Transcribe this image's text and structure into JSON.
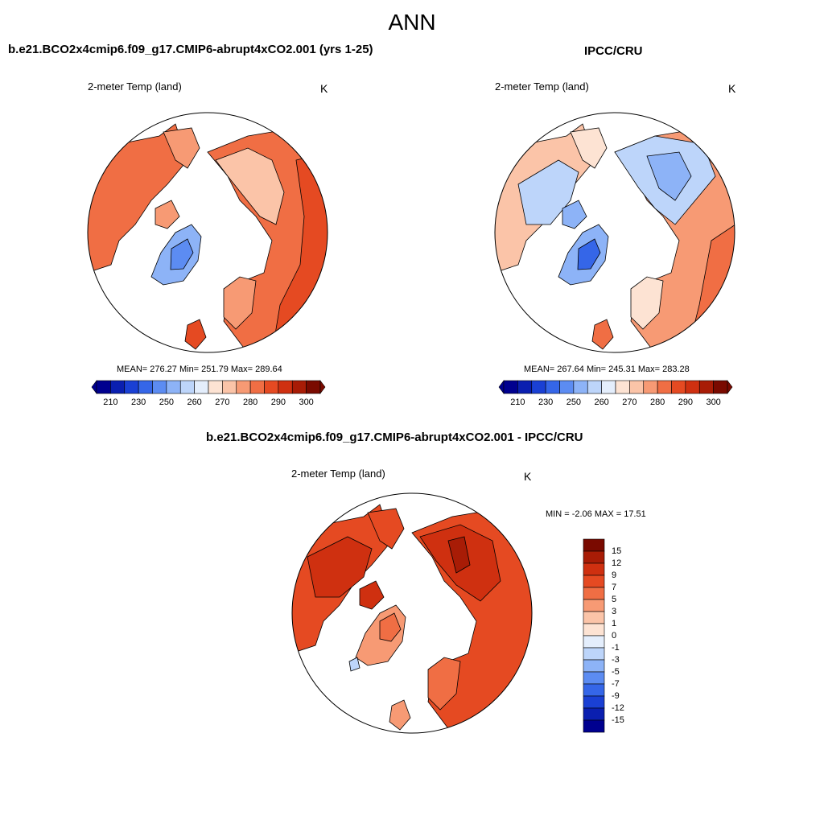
{
  "title": "ANN",
  "panels": [
    {
      "title": "b.e21.BCO2x4cmip6.f09_g17.CMIP6-abrupt4xCO2.001 (yrs 1-25)",
      "variable": "2-meter Temp (land)",
      "units": "K",
      "stats": "MEAN= 276.27  Min= 251.79  Max= 289.64"
    },
    {
      "title": "IPCC/CRU",
      "variable": "2-meter Temp (land)",
      "units": "K",
      "stats": "MEAN= 267.64  Min= 245.31  Max= 283.28"
    },
    {
      "title": "b.e21.BCO2x4cmip6.f09_g17.CMIP6-abrupt4xCO2.001 - IPCC/CRU",
      "variable": "2-meter Temp (land)",
      "units": "K",
      "stats": "MIN =  -2.06 MAX =  17.51"
    }
  ],
  "abs_colorbar": {
    "labels": [
      "210",
      "230",
      "250",
      "260",
      "270",
      "280",
      "290",
      "300"
    ],
    "colors": [
      "#00008f",
      "#0a1fb0",
      "#1a40d4",
      "#3566e8",
      "#5c8cf2",
      "#8db3f7",
      "#bdd5fa",
      "#e4eefc",
      "#fde3d3",
      "#fbc4a8",
      "#f79a74",
      "#f06e44",
      "#e54a22",
      "#cf3010",
      "#a81c06",
      "#7a0a00"
    ]
  },
  "diff_colorbar": {
    "labels": [
      "15",
      "12",
      "9",
      "7",
      "5",
      "3",
      "1",
      "0",
      "-1",
      "-3",
      "-5",
      "-7",
      "-9",
      "-12",
      "-15"
    ],
    "colors": [
      "#7a0a00",
      "#a81c06",
      "#cf3010",
      "#e54a22",
      "#f06e44",
      "#f79a74",
      "#fbc4a8",
      "#fde3d3",
      "#e4eefc",
      "#bdd5fa",
      "#8db3f7",
      "#5c8cf2",
      "#3566e8",
      "#1a40d4",
      "#0a1fb0",
      "#00008f"
    ]
  },
  "map_colors": {
    "a_warm": "#f06e44",
    "a_mid": "#f79a74",
    "a_light": "#fbc4a8",
    "a_hot": "#e54a22",
    "a_cold": "#8db3f7",
    "a_vcold": "#5c8cf2",
    "b_warm": "#f79a74",
    "b_mid": "#fbc4a8",
    "b_light": "#fde3d3",
    "b_cold": "#bdd5fa",
    "b_vcold": "#8db3f7",
    "b_deep": "#3566e8",
    "b_hot": "#f06e44",
    "d_main": "#e54a22",
    "d_deep": "#cf3010",
    "d_hot": "#a81c06",
    "d_mid": "#f06e44",
    "d_light": "#f79a74",
    "d_cold": "#bdd5fa"
  }
}
